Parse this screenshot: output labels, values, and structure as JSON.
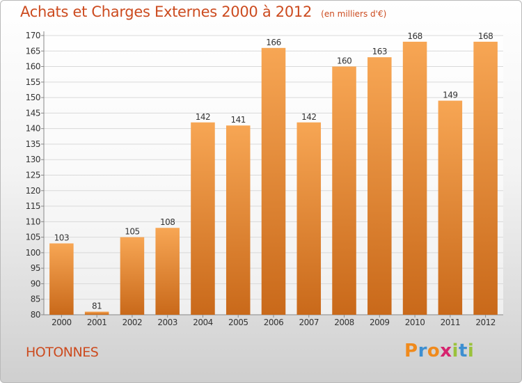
{
  "header": {
    "title": "Achats et Charges Externes 2000 à 2012",
    "subtitle": "(en milliers d'€)"
  },
  "footer": {
    "commune": "HOTONNES",
    "logo": {
      "letters": [
        "P",
        "r",
        "o",
        "x",
        "i",
        "t",
        "i"
      ],
      "colors": [
        "#f08a1c",
        "#3d8fd1",
        "#f08a1c",
        "#d6246e",
        "#9ac23c",
        "#3d8fd1",
        "#9ac23c"
      ]
    }
  },
  "colors": {
    "bar_light": "#f7a654",
    "bar_dark": "#c9691a",
    "title": "#cc4b1f",
    "grid": "#d9d9d9"
  },
  "chart_data": {
    "type": "bar",
    "title": "Achats et Charges Externes 2000 à 2012",
    "subtitle": "(en milliers d'€)",
    "categories": [
      "2000",
      "2001",
      "2002",
      "2003",
      "2004",
      "2005",
      "2006",
      "2007",
      "2008",
      "2009",
      "2010",
      "2011",
      "2012"
    ],
    "values": [
      103,
      81,
      105,
      108,
      142,
      141,
      166,
      142,
      160,
      163,
      168,
      149,
      168
    ],
    "ylim": [
      80,
      170
    ],
    "ytick_step": 5,
    "grid": true,
    "legend": "none"
  }
}
